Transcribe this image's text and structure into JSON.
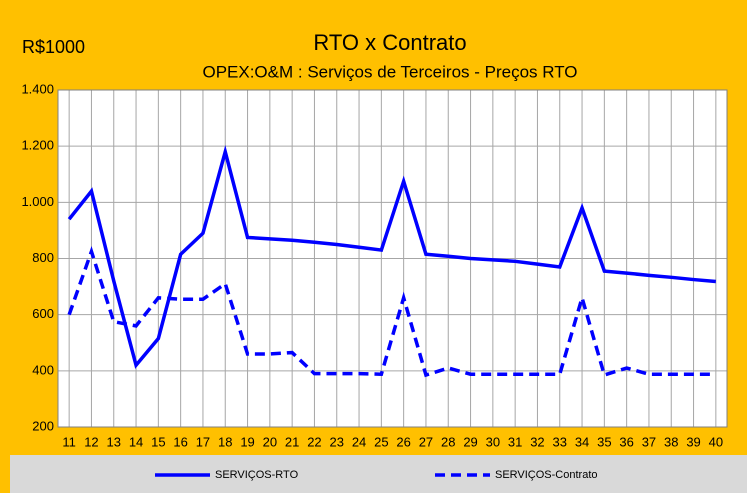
{
  "chart_data": {
    "type": "line",
    "title": "RTO  x Contrato",
    "subtitle": "OPEX:O&M : Serviços de Terceiros -  Preços RTO",
    "y_label": "R$1000",
    "categories": [
      "11",
      "12",
      "13",
      "14",
      "15",
      "16",
      "17",
      "18",
      "19",
      "20",
      "21",
      "22",
      "23",
      "24",
      "25",
      "26",
      "27",
      "28",
      "29",
      "30",
      "31",
      "32",
      "33",
      "34",
      "35",
      "36",
      "37",
      "38",
      "39",
      "40"
    ],
    "series": [
      {
        "name": "SERVIÇOS-RTO",
        "color": "#0000ff",
        "dash": "solid",
        "values": [
          940,
          1040,
          720,
          420,
          515,
          815,
          890,
          1180,
          875,
          870,
          865,
          858,
          850,
          840,
          830,
          1075,
          815,
          808,
          800,
          795,
          790,
          780,
          770,
          980,
          755,
          748,
          740,
          733,
          725,
          718
        ]
      },
      {
        "name": "SERVIÇOS-Contrato",
        "color": "#0000ff",
        "dash": "dashed",
        "values": [
          600,
          825,
          575,
          560,
          660,
          655,
          655,
          710,
          460,
          460,
          465,
          390,
          390,
          390,
          388,
          660,
          385,
          410,
          388,
          388,
          388,
          388,
          388,
          660,
          385,
          410,
          388,
          388,
          388,
          388
        ]
      }
    ],
    "ylim": [
      200,
      1400
    ],
    "yticks": [
      200,
      400,
      600,
      800,
      {
        "value": 1000,
        "label": "1.000"
      },
      {
        "value": 1200,
        "label": "1.200"
      },
      {
        "value": 1400,
        "label": "1.400"
      }
    ],
    "grid": true,
    "legend": "bottom"
  }
}
